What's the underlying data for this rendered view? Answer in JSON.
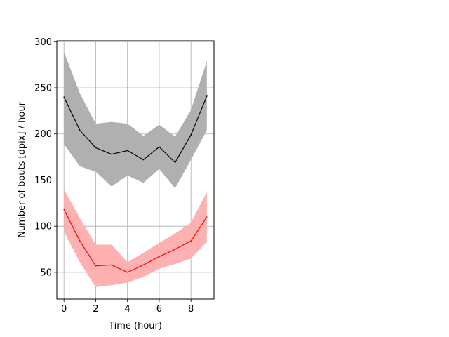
{
  "chart_data": {
    "type": "line",
    "title": "",
    "xlabel": "Time (hour)",
    "ylabel": "Number of bouts [dpix]  / hour",
    "xlim": [
      -0.45,
      9.45
    ],
    "ylim": [
      21,
      301
    ],
    "xticks": [
      0,
      2,
      4,
      6,
      8
    ],
    "yticks": [
      50,
      100,
      150,
      200,
      250,
      300
    ],
    "grid": true,
    "legend": "none",
    "x": [
      0,
      1,
      2,
      3,
      4,
      5,
      6,
      7,
      8,
      9
    ],
    "series": [
      {
        "color": "#000000",
        "band_color": "#b0b0b0",
        "values": [
          240,
          204,
          185,
          178,
          182,
          172,
          186,
          169,
          199,
          241
        ],
        "upper": [
          289,
          244,
          211,
          213,
          211,
          198,
          210,
          197,
          226,
          279
        ],
        "lower": [
          189,
          165,
          159,
          143,
          155,
          147,
          162,
          141,
          172,
          204
        ]
      },
      {
        "color": "#ff0000",
        "band_color": "#ffb0b0",
        "values": [
          118,
          84,
          57,
          58,
          50,
          58,
          67,
          75,
          84,
          110
        ],
        "upper": [
          140,
          109,
          80,
          80,
          61,
          71,
          82,
          92,
          104,
          137
        ],
        "lower": [
          94,
          61,
          34,
          36,
          39,
          45,
          54,
          59,
          65,
          83
        ]
      }
    ]
  }
}
